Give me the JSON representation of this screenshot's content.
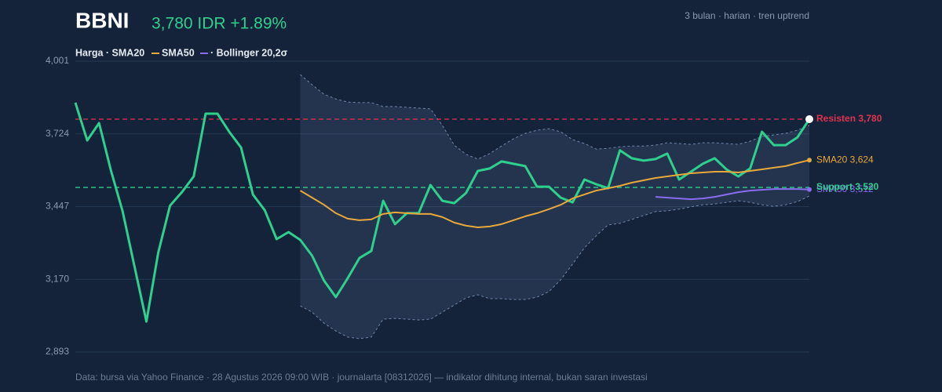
{
  "chart_data": {
    "type": "line",
    "title": "BBNI",
    "subtitle": "3,780 IDR +1.89%",
    "note": "3 bulan · harian · tren uptrend",
    "legend": [
      "Harga · SMA20",
      "SMA50",
      "· Bollinger 20,2σ"
    ],
    "footer": "Data: bursa via Yahoo Finance · 28 Agustus 2026 09:00 WIB · journalarta [08312026] — indikator dihitung internal, bukan saran investasi",
    "ylim": [
      2893,
      4001
    ],
    "yticks": [
      {
        "value": 2893,
        "label": "2,893"
      },
      {
        "value": 3170,
        "label": "3,170"
      },
      {
        "value": 3447,
        "label": "3,447"
      },
      {
        "value": 3724,
        "label": "3,724"
      },
      {
        "value": 4001,
        "label": "4,001"
      }
    ],
    "grid": true,
    "series": [
      {
        "color": "#2fcf8e",
        "values": [
          3843,
          3699,
          3765,
          3586,
          3428,
          3218,
          3009,
          3272,
          3451,
          3502,
          3562,
          3801,
          3801,
          3732,
          3672,
          3493,
          3433,
          3323,
          3350,
          3320,
          3260,
          3165,
          3102,
          3174,
          3251,
          3278,
          3469,
          3380,
          3422,
          3422,
          3529,
          3469,
          3460,
          3499,
          3583,
          3592,
          3619,
          3610,
          3601,
          3523,
          3523,
          3481,
          3463,
          3550,
          3532,
          3517,
          3661,
          3631,
          3622,
          3628,
          3649,
          3550,
          3580,
          3610,
          3631,
          3589,
          3562,
          3592,
          3732,
          3681,
          3681,
          3711,
          3780
        ]
      },
      {
        "color": "#e8a83a",
        "label": "SMA20 3,624",
        "values": [
          null,
          null,
          null,
          null,
          null,
          null,
          null,
          null,
          null,
          null,
          null,
          null,
          null,
          null,
          null,
          null,
          null,
          null,
          null,
          3508,
          3481,
          3454,
          3422,
          3401,
          3395,
          3398,
          3419,
          3425,
          3422,
          3419,
          3419,
          3407,
          3386,
          3374,
          3368,
          3371,
          3380,
          3395,
          3410,
          3422,
          3437,
          3454,
          3478,
          3493,
          3508,
          3517,
          3526,
          3538,
          3547,
          3556,
          3562,
          3568,
          3574,
          3577,
          3580,
          3580,
          3577,
          3583,
          3589,
          3595,
          3601,
          3613,
          3624
        ]
      },
      {
        "color": "#8a6cf0",
        "label": "SMA50 3,512",
        "values": [
          null,
          null,
          null,
          null,
          null,
          null,
          null,
          null,
          null,
          null,
          null,
          null,
          null,
          null,
          null,
          null,
          null,
          null,
          null,
          null,
          null,
          null,
          null,
          null,
          null,
          null,
          null,
          null,
          null,
          null,
          null,
          null,
          null,
          null,
          null,
          null,
          null,
          null,
          null,
          null,
          null,
          null,
          null,
          null,
          null,
          null,
          null,
          null,
          null,
          3484,
          3481,
          3478,
          3475,
          3478,
          3484,
          3493,
          3502,
          3508,
          3511,
          3514,
          3514,
          3514,
          3512
        ]
      }
    ],
    "band": {
      "color": "#6f86ad",
      "upper": [
        null,
        null,
        null,
        null,
        null,
        null,
        null,
        null,
        null,
        null,
        null,
        null,
        null,
        null,
        null,
        null,
        null,
        null,
        null,
        3950,
        3911,
        3875,
        3857,
        3845,
        3843,
        3843,
        3828,
        3828,
        3825,
        3822,
        3819,
        3756,
        3681,
        3646,
        3628,
        3649,
        3678,
        3705,
        3726,
        3738,
        3744,
        3732,
        3702,
        3687,
        3666,
        3669,
        3675,
        3678,
        3678,
        3681,
        3690,
        3687,
        3684,
        3690,
        3690,
        3687,
        3684,
        3696,
        3714,
        3720,
        3726,
        3738,
        3756
      ],
      "lower": [
        null,
        null,
        null,
        null,
        null,
        null,
        null,
        null,
        null,
        null,
        null,
        null,
        null,
        null,
        null,
        null,
        null,
        null,
        null,
        3069,
        3045,
        3003,
        2973,
        2950,
        2944,
        2950,
        3018,
        3021,
        3018,
        3015,
        3018,
        3045,
        3072,
        3099,
        3111,
        3096,
        3096,
        3093,
        3093,
        3102,
        3123,
        3168,
        3228,
        3290,
        3336,
        3377,
        3383,
        3398,
        3413,
        3428,
        3431,
        3437,
        3446,
        3454,
        3457,
        3463,
        3469,
        3463,
        3454,
        3448,
        3454,
        3466,
        3487
      ]
    },
    "levels": [
      {
        "label": "Resisten 3,780",
        "value": 3780,
        "color": "#e0334f"
      },
      {
        "label": "Support 3,520",
        "value": 3520,
        "color": "#2fcf8e"
      }
    ]
  }
}
